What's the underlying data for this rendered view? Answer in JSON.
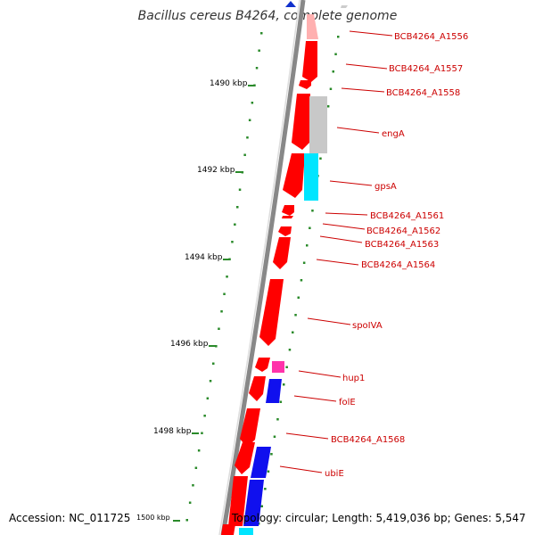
{
  "title": "Bacillus cereus B4264, complete genome",
  "accession": "Accession: NC_011725",
  "topology": "Topology: circular; Length: 5,419,036 bp; Genes: 5,547",
  "colors": {
    "backbone": "#888888",
    "tick": "#2a8a2a",
    "label": "#cc0000",
    "cds_red": "#ff0000",
    "cds_gray": "#c8c8c8",
    "cds_cyan": "#00e5ff",
    "cds_pink": "#ff33aa",
    "cds_blue": "#1010ee",
    "marker": "#1030cc"
  },
  "scale_labels": [
    "1490 kbp",
    "1492 kbp",
    "1494 kbp",
    "1496 kbp",
    "1498 kbp",
    "1500 kbp"
  ],
  "gene_labels": [
    "BCB4264_A1556",
    "BCB4264_A1557",
    "BCB4264_A1558",
    "engA",
    "gpsA",
    "BCB4264_A1561",
    "BCB4264_A1562",
    "BCB4264_A1563",
    "BCB4264_A1564",
    "spoIVA",
    "hup1",
    "folE",
    "BCB4264_A1568",
    "ubiE"
  ]
}
